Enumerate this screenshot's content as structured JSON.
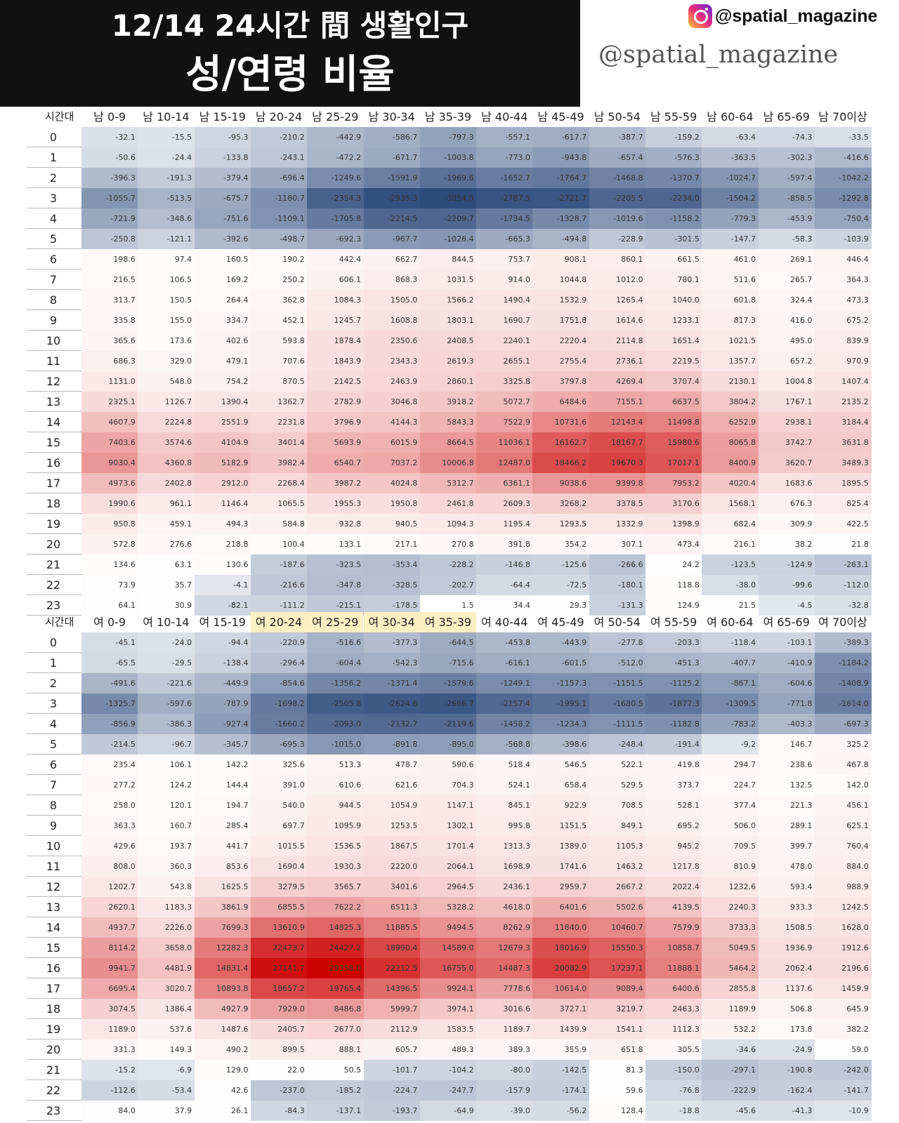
{
  "title": {
    "line1": "12/14 24시간 間 생활인구",
    "line2": "성/연령 비율"
  },
  "handle_top": "@spatial_magazine",
  "handle_script": "@spatial_magazine",
  "colors": {
    "negative_max": "#2f4b7c",
    "neutral": "#ffffff",
    "positive_max": "#cc0000",
    "highlight_header": "#fbefc4",
    "title_bg": "#111111"
  },
  "icons": [
    "instagram-icon"
  ],
  "chart_data": [
    {
      "type": "heatmap",
      "row_header": "시간대",
      "rows": [
        "0",
        "1",
        "2",
        "3",
        "4",
        "5",
        "6",
        "7",
        "8",
        "9",
        "10",
        "11",
        "12",
        "13",
        "14",
        "15",
        "16",
        "17",
        "18",
        "19",
        "20",
        "21",
        "22",
        "23"
      ],
      "columns": [
        "남 0-9",
        "남 10-14",
        "남 15-19",
        "남 20-24",
        "남 25-29",
        "남 30-34",
        "남 35-39",
        "남 40-44",
        "남 45-49",
        "남 50-54",
        "남 55-59",
        "남 60-64",
        "남 65-69",
        "남 70이상"
      ],
      "highlighted_columns": [],
      "values": [
        [
          "-32.1",
          "-15.5",
          "-95.3",
          "-210.2",
          "-442.9",
          "-586.7",
          "-797.3",
          "-557.1",
          "-617.7",
          "-387.7",
          "-159.2",
          "-63.4",
          "-74.3",
          "-33.5"
        ],
        [
          "-50.6",
          "-24.4",
          "-133.8",
          "-243.1",
          "-472.2",
          "-671.7",
          "-1003.8",
          "-773.0",
          "-943.8",
          "-657.4",
          "-576.3",
          "-363.5",
          "-302.3",
          "-416.6"
        ],
        [
          "-396.3",
          "-191.3",
          "-379.4",
          "-696.4",
          "-1249.6",
          "-1591.9",
          "-1969.6",
          "-1652.7",
          "-1764.7",
          "-1468.8",
          "-1370.7",
          "-1024.7",
          "-597.4",
          "-1042.2"
        ],
        [
          "-1055.7",
          "-513.5",
          "-675.7",
          "-1180.7",
          "-2354.3",
          "-2935.3",
          "-3054.0",
          "-2787.5",
          "-2721.7",
          "-2205.5",
          "-2234.0",
          "-1504.2",
          "-858.5",
          "-1292.8"
        ],
        [
          "-721.9",
          "-348.6",
          "-751.6",
          "-1109.1",
          "-1705.8",
          "-2214.5",
          "-2209.7",
          "-1734.5",
          "-1328.7",
          "-1019.6",
          "-1158.2",
          "-779.3",
          "-453.9",
          "-750.4"
        ],
        [
          "-250.8",
          "-121.1",
          "-392.6",
          "-498.7",
          "-692.3",
          "-967.7",
          "-1026.4",
          "-665.3",
          "-494.8",
          "-228.9",
          "-301.5",
          "-147.7",
          "-58.3",
          "-103.9"
        ],
        [
          "198.6",
          "97.4",
          "160.5",
          "190.2",
          "442.4",
          "662.7",
          "844.5",
          "753.7",
          "908.1",
          "860.1",
          "661.5",
          "461.0",
          "269.1",
          "446.4"
        ],
        [
          "216.5",
          "106.5",
          "169.2",
          "250.2",
          "606.1",
          "868.3",
          "1031.5",
          "914.0",
          "1044.8",
          "1012.0",
          "780.1",
          "511.6",
          "265.7",
          "364.3"
        ],
        [
          "313.7",
          "150.5",
          "264.4",
          "362.8",
          "1084.3",
          "1505.0",
          "1566.2",
          "1490.4",
          "1532.9",
          "1265.4",
          "1040.0",
          "601.8",
          "324.4",
          "473.3"
        ],
        [
          "335.8",
          "155.0",
          "334.7",
          "452.1",
          "1245.7",
          "1608.8",
          "1803.1",
          "1690.7",
          "1751.8",
          "1614.6",
          "1233.1",
          "817.3",
          "416.0",
          "675.2"
        ],
        [
          "365.6",
          "173.6",
          "402.6",
          "593.8",
          "1878.4",
          "2350.6",
          "2408.5",
          "2240.1",
          "2220.4",
          "2114.8",
          "1651.4",
          "1021.5",
          "495.0",
          "839.9"
        ],
        [
          "686.3",
          "329.0",
          "479.1",
          "707.6",
          "1843.9",
          "2343.3",
          "2619.3",
          "2655.1",
          "2755.4",
          "2736.1",
          "2219.5",
          "1357.7",
          "657.2",
          "970.9"
        ],
        [
          "1131.0",
          "548.0",
          "754.2",
          "870.5",
          "2142.5",
          "2463.9",
          "2860.1",
          "3325.8",
          "3797.8",
          "4269.4",
          "3707.4",
          "2130.1",
          "1004.8",
          "1407.4"
        ],
        [
          "2325.1",
          "1126.7",
          "1390.4",
          "1362.7",
          "2782.9",
          "3046.8",
          "3918.2",
          "5072.7",
          "6484.6",
          "7155.1",
          "6637.5",
          "3804.2",
          "1767.1",
          "2135.2"
        ],
        [
          "4607.9",
          "2224.8",
          "2551.9",
          "2231.8",
          "3796.9",
          "4144.3",
          "5843.3",
          "7522.9",
          "10731.6",
          "12143.4",
          "11498.8",
          "6252.9",
          "2938.1",
          "3184.4"
        ],
        [
          "7403.6",
          "3574.6",
          "4104.9",
          "3401.4",
          "5693.9",
          "6015.9",
          "8664.5",
          "11036.1",
          "16162.7",
          "18167.7",
          "15980.6",
          "8065.8",
          "3742.7",
          "3631.8"
        ],
        [
          "9030.4",
          "4360.8",
          "5182.9",
          "3982.4",
          "6540.7",
          "7037.2",
          "10006.8",
          "12487.0",
          "18466.2",
          "19670.3",
          "17017.1",
          "8400.9",
          "3620.7",
          "3489.3"
        ],
        [
          "4973.6",
          "2402.8",
          "2912.0",
          "2268.4",
          "3987.2",
          "4024.8",
          "5312.7",
          "6361.1",
          "9038.6",
          "9399.8",
          "7953.2",
          "4020.4",
          "1683.6",
          "1895.5"
        ],
        [
          "1990.6",
          "961.1",
          "1146.4",
          "1065.5",
          "1955.3",
          "1950.8",
          "2461.8",
          "2609.3",
          "3268.2",
          "3378.5",
          "3170.6",
          "1568.1",
          "676.3",
          "825.4"
        ],
        [
          "950.8",
          "459.1",
          "494.3",
          "584.8",
          "932.8",
          "940.5",
          "1094.3",
          "1195.4",
          "1293.5",
          "1332.9",
          "1398.9",
          "682.4",
          "309.9",
          "422.5"
        ],
        [
          "572.8",
          "276.6",
          "218.8",
          "100.4",
          "133.1",
          "217.1",
          "270.8",
          "391.8",
          "354.2",
          "307.1",
          "473.4",
          "216.1",
          "38.2",
          "21.8"
        ],
        [
          "134.6",
          "63.1",
          "130.6",
          "-187.6",
          "-323.5",
          "-353.4",
          "-228.2",
          "-146.8",
          "-125.6",
          "-266.6",
          "24.2",
          "-123.5",
          "-124.9",
          "-263.1"
        ],
        [
          "73.9",
          "35.7",
          "-4.1",
          "-216.6",
          "-347.8",
          "-328.5",
          "-202.7",
          "-64.4",
          "-72.5",
          "-180.1",
          "118.8",
          "-38.0",
          "-99.6",
          "-112.0"
        ],
        [
          "64.1",
          "30.9",
          "-82.1",
          "-111.2",
          "-215.1",
          "-178.5",
          "1.5",
          "34.4",
          "29.3",
          "-131.3",
          "124.9",
          "21.5",
          "-4.5",
          "-32.8"
        ]
      ]
    },
    {
      "type": "heatmap",
      "row_header": "시간대",
      "rows": [
        "0",
        "1",
        "2",
        "3",
        "4",
        "5",
        "6",
        "7",
        "8",
        "9",
        "10",
        "11",
        "12",
        "13",
        "14",
        "15",
        "16",
        "17",
        "18",
        "19",
        "20",
        "21",
        "22",
        "23"
      ],
      "columns": [
        "여 0-9",
        "여 10-14",
        "여 15-19",
        "여 20-24",
        "여 25-29",
        "여 30-34",
        "여 35-39",
        "여 40-44",
        "여 45-49",
        "여 50-54",
        "여 55-59",
        "여 60-64",
        "여 65-69",
        "여 70이상"
      ],
      "highlighted_columns": [
        "여 20-24",
        "여 25-29",
        "여 30-34",
        "여 35-39"
      ],
      "values": [
        [
          "-45.1",
          "-24.0",
          "-94.4",
          "-220.9",
          "-516.6",
          "-377.3",
          "-644.5",
          "-453.8",
          "-443.9",
          "-277.8",
          "-203.3",
          "-118.4",
          "-103.1",
          "-389.3"
        ],
        [
          "-65.5",
          "-29.5",
          "-138.4",
          "-296.4",
          "-604.4",
          "-542.3",
          "-715.6",
          "-616.1",
          "-601.5",
          "-512.0",
          "-451.3",
          "-407.7",
          "-410.9",
          "-1184.2"
        ],
        [
          "-491.6",
          "-221.6",
          "-449.9",
          "-854.6",
          "-1356.2",
          "-1371.4",
          "-1579.6",
          "-1249.1",
          "-1157.3",
          "-1151.5",
          "-1125.2",
          "-867.1",
          "-604.6",
          "-1408.9"
        ],
        [
          "-1325.7",
          "-597.6",
          "-787.9",
          "-1698.2",
          "-2505.8",
          "-2624.6",
          "-2666.7",
          "-2157.4",
          "-1995.1",
          "-1680.5",
          "-1877.3",
          "-1309.5",
          "-771.8",
          "-1614.0"
        ],
        [
          "-856.9",
          "-386.3",
          "-927.4",
          "-1660.2",
          "-2093.0",
          "-2132.7",
          "-2119.6",
          "-1458.2",
          "-1234.3",
          "-1111.5",
          "-1182.8",
          "-783.2",
          "-403.3",
          "-697.3"
        ],
        [
          "-214.5",
          "-96.7",
          "-345.7",
          "-695.3",
          "-1015.0",
          "-891.8",
          "-895.0",
          "-568.8",
          "-398.6",
          "-248.4",
          "-191.4",
          "-9.2",
          "146.7",
          "325.2"
        ],
        [
          "235.4",
          "106.1",
          "142.2",
          "325.6",
          "513.3",
          "478.7",
          "590.6",
          "518.4",
          "546.5",
          "522.1",
          "419.8",
          "294.7",
          "238.6",
          "467.8"
        ],
        [
          "277.2",
          "124.2",
          "144.4",
          "391.0",
          "610.6",
          "621.6",
          "704.3",
          "524.1",
          "658.4",
          "529.5",
          "373.7",
          "224.7",
          "132.5",
          "142.0"
        ],
        [
          "258.0",
          "120.1",
          "194.7",
          "540.0",
          "944.5",
          "1054.9",
          "1147.1",
          "845.1",
          "922.9",
          "708.5",
          "528.1",
          "377.4",
          "221.3",
          "456.1"
        ],
        [
          "363.3",
          "160.7",
          "285.4",
          "697.7",
          "1095.9",
          "1253.5",
          "1302.1",
          "995.8",
          "1151.5",
          "849.1",
          "695.2",
          "506.0",
          "289.1",
          "625.1"
        ],
        [
          "429.6",
          "193.7",
          "441.7",
          "1015.5",
          "1536.5",
          "1867.5",
          "1701.4",
          "1313.3",
          "1389.0",
          "1105.3",
          "945.2",
          "709.5",
          "399.7",
          "760.4"
        ],
        [
          "808.0",
          "360.3",
          "853.6",
          "1690.4",
          "1930.3",
          "2220.0",
          "2064.1",
          "1698.9",
          "1741.6",
          "1463.2",
          "1217.8",
          "810.9",
          "478.0",
          "884.0"
        ],
        [
          "1202.7",
          "543.8",
          "1625.5",
          "3279.5",
          "3565.7",
          "3401.6",
          "2964.5",
          "2436.1",
          "2959.7",
          "2667.2",
          "2022.4",
          "1232.6",
          "593.4",
          "988.9"
        ],
        [
          "2620.1",
          "1183.3",
          "3861.9",
          "6855.5",
          "7622.2",
          "6511.3",
          "5328.2",
          "4618.0",
          "6401.6",
          "5502.6",
          "4139.5",
          "2240.3",
          "933.3",
          "1242.5"
        ],
        [
          "4937.7",
          "2226.0",
          "7699.3",
          "13610.9",
          "14825.3",
          "11885.5",
          "9494.5",
          "8262.9",
          "11840.0",
          "10460.7",
          "7579.9",
          "3733.3",
          "1508.5",
          "1628.0"
        ],
        [
          "8114.2",
          "3658.0",
          "12282.3",
          "22473.7",
          "24427.2",
          "18990.4",
          "14589.0",
          "12679.3",
          "18016.9",
          "15550.3",
          "10858.7",
          "5049.5",
          "1936.9",
          "1912.6"
        ],
        [
          "9941.7",
          "4481.9",
          "14831.4",
          "27141.7",
          "29358.0",
          "22212.5",
          "16755.0",
          "14487.3",
          "20082.9",
          "17237.1",
          "11888.1",
          "5464.2",
          "2062.4",
          "2196.6"
        ],
        [
          "6695.4",
          "3020.7",
          "10893.8",
          "18657.2",
          "19765.4",
          "14396.5",
          "9924.1",
          "7778.6",
          "10614.0",
          "9089.4",
          "6400.6",
          "2855.8",
          "1137.6",
          "1459.9"
        ],
        [
          "3074.5",
          "1386.4",
          "4927.9",
          "7929.0",
          "8486.8",
          "5999.7",
          "3974.1",
          "3016.6",
          "3727.1",
          "3219.7",
          "2463.3",
          "1189.9",
          "506.8",
          "645.9"
        ],
        [
          "1189.0",
          "537.6",
          "1487.6",
          "2405.7",
          "2677.0",
          "2112.9",
          "1583.5",
          "1189.7",
          "1439.9",
          "1541.1",
          "1112.3",
          "532.2",
          "173.8",
          "382.2"
        ],
        [
          "331.3",
          "149.3",
          "490.2",
          "899.5",
          "888.1",
          "605.7",
          "489.3",
          "389.3",
          "355.9",
          "651.8",
          "305.5",
          "-34.6",
          "-24.9",
          "59.0"
        ],
        [
          "-15.2",
          "-6.9",
          "129.0",
          "22.0",
          "50.5",
          "-101.7",
          "-104.2",
          "-80.0",
          "-142.5",
          "81.3",
          "-150.0",
          "-297.1",
          "-190.8",
          "-242.0"
        ],
        [
          "-112.6",
          "-53.4",
          "42.6",
          "-237.0",
          "-185.2",
          "-224.7",
          "-247.7",
          "-157.9",
          "-174.1",
          "59.6",
          "-76.8",
          "-222.9",
          "-162.4",
          "-141.7"
        ],
        [
          "84.0",
          "37.9",
          "26.1",
          "-84.3",
          "-137.1",
          "-193.7",
          "-64.9",
          "-39.0",
          "-56.2",
          "128.4",
          "-18.8",
          "-45.6",
          "-41.3",
          "-10.9"
        ]
      ]
    }
  ]
}
